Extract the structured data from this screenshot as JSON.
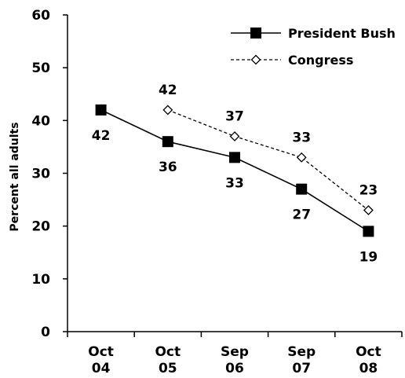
{
  "chart_data": {
    "type": "line",
    "title": "",
    "xlabel": "",
    "ylabel": "Percent all adults",
    "ylim": [
      0,
      60
    ],
    "yticks": [
      "0",
      "10",
      "20",
      "30",
      "40",
      "50",
      "60"
    ],
    "categories": [
      [
        "Oct",
        "04"
      ],
      [
        "Oct",
        "05"
      ],
      [
        "Sep",
        "06"
      ],
      [
        "Sep",
        "07"
      ],
      [
        "Oct",
        "08"
      ]
    ],
    "grid": false,
    "legend_position": "top-right",
    "series": [
      {
        "name": "President Bush",
        "marker": "filled-square",
        "line_style": "solid",
        "color": "#000000",
        "values": [
          42,
          36,
          33,
          27,
          19
        ],
        "labels": [
          "42",
          "36",
          "33",
          "27",
          "19"
        ]
      },
      {
        "name": "Congress",
        "marker": "open-diamond",
        "line_style": "dashed",
        "color": "#000000",
        "values": [
          null,
          42,
          37,
          33,
          23
        ],
        "labels": [
          null,
          "42",
          "37",
          "33",
          "23"
        ]
      }
    ]
  }
}
